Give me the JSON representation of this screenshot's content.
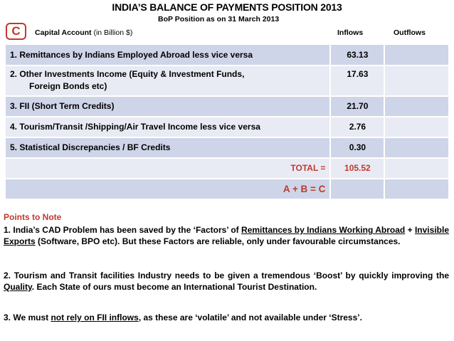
{
  "title": "INDIA’S BALANCE OF PAYMENTS  POSITION 2013",
  "subtitle": "BoP  Position as on 31 March 2013",
  "badge": "C",
  "header": {
    "capital_account": "Capital Account",
    "unit": "(in Billion $)",
    "inflows": "Inflows",
    "outflows": "Outflows"
  },
  "rows": [
    {
      "label": "1.   Remittances by Indians Employed Abroad less vice versa",
      "inflow": "63.13",
      "outflow": ""
    },
    {
      "label": "2.   Other Investments Income (Equity & Investment Funds,",
      "label2": "Foreign Bonds etc)",
      "inflow": "17.63",
      "outflow": ""
    },
    {
      "label": "3.   FII (Short Term Credits)",
      "inflow": "21.70",
      "outflow": ""
    },
    {
      "label": "4.   Tourism/Transit /Shipping/Air Travel Income less vice versa",
      "inflow": "2.76",
      "outflow": ""
    },
    {
      "label": "5.   Statistical Discrepancies / BF Credits",
      "inflow": "0.30",
      "outflow": ""
    }
  ],
  "total": {
    "label": "TOTAL   =",
    "value": "105.52"
  },
  "formula": "A + B  =  C",
  "notes": {
    "heading": "Points to Note",
    "n1": {
      "prefix": "1.     India’s CAD Problem has been saved by the ‘Factors’ of ",
      "u1": "Remittances by Indians Working Abroad",
      "mid": " + ",
      "u2": "Invisible Exports",
      "suffix": " (Software, BPO etc). But these Factors are reliable, only under favourable circumstances."
    },
    "n2": {
      "prefix": "2.   Tourism and Transit facilities Industry needs to be given a tremendous ‘Boost’ by quickly improving the ",
      "u1": "Quality",
      "suffix": ". Each State of ours  must become an International Tourist Destination."
    },
    "n3": {
      "prefix": "3.      We must ",
      "u1": "not rely on FII inflows",
      "suffix": ", as these are ‘volatile’ and not  available under ‘Stress’."
    }
  },
  "colors": {
    "accent_red": "#c0392b",
    "row_dark": "#cfd5e8",
    "row_light": "#e8ebf4"
  }
}
